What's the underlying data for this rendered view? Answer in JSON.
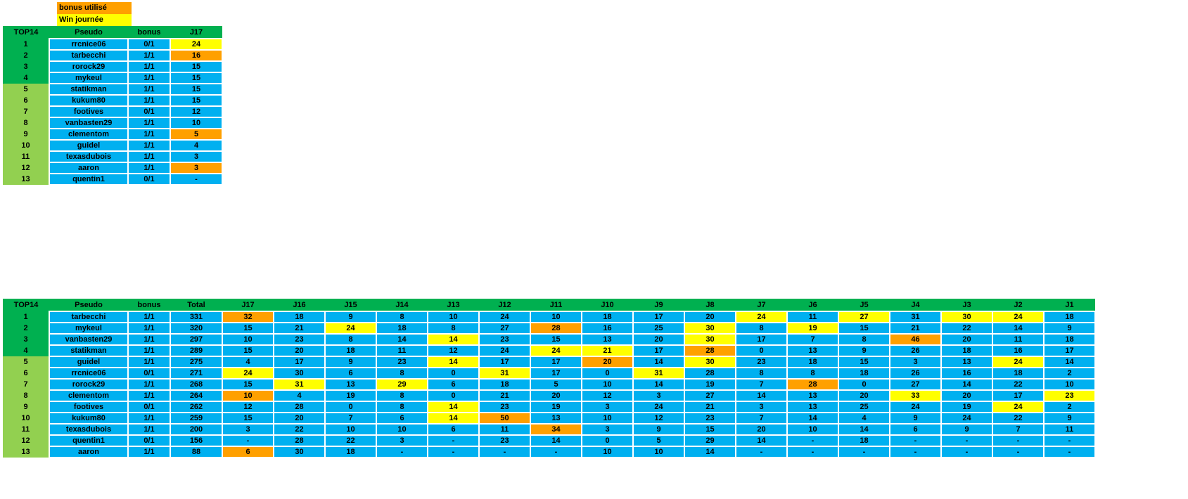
{
  "colors": {
    "green_dark": "#00B050",
    "green_light": "#92D050",
    "blue": "#00B0F0",
    "orange": "#FFA000",
    "yellow": "#FFFF00"
  },
  "legend": {
    "items": [
      {
        "label": "bonus utilisé",
        "meaning": "orange"
      },
      {
        "label": "Win journée",
        "meaning": "yellow"
      }
    ]
  },
  "table1": {
    "headers": [
      "TOP14",
      "Pseudo",
      "bonus",
      "J17"
    ],
    "rows": [
      {
        "rank": 1,
        "pseudo": "rrcnice06",
        "bonus": "0/1",
        "values": [
          24
        ],
        "marks": [
          "w"
        ]
      },
      {
        "rank": 2,
        "pseudo": "tarbecchi",
        "bonus": "1/1",
        "values": [
          16
        ],
        "marks": [
          "b"
        ]
      },
      {
        "rank": 3,
        "pseudo": "rorock29",
        "bonus": "1/1",
        "values": [
          15
        ],
        "marks": [
          ""
        ]
      },
      {
        "rank": 4,
        "pseudo": "mykeul",
        "bonus": "1/1",
        "values": [
          15
        ],
        "marks": [
          ""
        ]
      },
      {
        "rank": 5,
        "pseudo": "statikman",
        "bonus": "1/1",
        "values": [
          15
        ],
        "marks": [
          ""
        ]
      },
      {
        "rank": 6,
        "pseudo": "kukum80",
        "bonus": "1/1",
        "values": [
          15
        ],
        "marks": [
          ""
        ]
      },
      {
        "rank": 7,
        "pseudo": "footives",
        "bonus": "0/1",
        "values": [
          12
        ],
        "marks": [
          ""
        ]
      },
      {
        "rank": 8,
        "pseudo": "vanbasten29",
        "bonus": "1/1",
        "values": [
          10
        ],
        "marks": [
          ""
        ]
      },
      {
        "rank": 9,
        "pseudo": "clementom",
        "bonus": "1/1",
        "values": [
          5
        ],
        "marks": [
          "b"
        ]
      },
      {
        "rank": 10,
        "pseudo": "guidel",
        "bonus": "1/1",
        "values": [
          4
        ],
        "marks": [
          ""
        ]
      },
      {
        "rank": 11,
        "pseudo": "texasdubois",
        "bonus": "1/1",
        "values": [
          3
        ],
        "marks": [
          ""
        ]
      },
      {
        "rank": 12,
        "pseudo": "aaron",
        "bonus": "1/1",
        "values": [
          3
        ],
        "marks": [
          "b"
        ]
      },
      {
        "rank": 13,
        "pseudo": "quentin1",
        "bonus": "0/1",
        "values": [
          "-"
        ],
        "marks": [
          ""
        ]
      }
    ]
  },
  "table2": {
    "headers": [
      "TOP14",
      "Pseudo",
      "bonus",
      "Total",
      "J17",
      "J16",
      "J15",
      "J14",
      "J13",
      "J12",
      "J11",
      "J10",
      "J9",
      "J8",
      "J7",
      "J6",
      "J5",
      "J4",
      "J3",
      "J2",
      "J1"
    ],
    "rows": [
      {
        "rank": 1,
        "pseudo": "tarbecchi",
        "bonus": "1/1",
        "total": 331,
        "values": [
          32,
          18,
          9,
          8,
          10,
          24,
          10,
          18,
          17,
          20,
          24,
          11,
          27,
          31,
          30,
          24,
          18
        ],
        "marks": [
          "b",
          "",
          "",
          "",
          "",
          "",
          "",
          "",
          "",
          "",
          "w",
          "",
          "w",
          "",
          "w",
          "w",
          ""
        ]
      },
      {
        "rank": 2,
        "pseudo": "mykeul",
        "bonus": "1/1",
        "total": 320,
        "values": [
          15,
          21,
          24,
          18,
          8,
          27,
          28,
          16,
          25,
          30,
          8,
          19,
          15,
          21,
          22,
          14,
          9
        ],
        "marks": [
          "",
          "",
          "w",
          "",
          "",
          "",
          "b",
          "",
          "",
          "w",
          "",
          "w",
          "",
          "",
          "",
          "",
          ""
        ]
      },
      {
        "rank": 3,
        "pseudo": "vanbasten29",
        "bonus": "1/1",
        "total": 297,
        "values": [
          10,
          23,
          8,
          14,
          14,
          23,
          15,
          13,
          20,
          30,
          17,
          7,
          8,
          46,
          20,
          11,
          18
        ],
        "marks": [
          "",
          "",
          "",
          "",
          "w",
          "",
          "",
          "",
          "",
          "w",
          "",
          "",
          "",
          "b",
          "",
          "",
          ""
        ]
      },
      {
        "rank": 4,
        "pseudo": "statikman",
        "bonus": "1/1",
        "total": 289,
        "values": [
          15,
          20,
          18,
          11,
          12,
          24,
          24,
          21,
          17,
          28,
          0,
          13,
          9,
          26,
          18,
          16,
          17
        ],
        "marks": [
          "",
          "",
          "",
          "",
          "",
          "",
          "w",
          "w",
          "",
          "b",
          "",
          "",
          "",
          "",
          "",
          "",
          ""
        ]
      },
      {
        "rank": 5,
        "pseudo": "guidel",
        "bonus": "1/1",
        "total": 275,
        "values": [
          4,
          17,
          9,
          23,
          14,
          17,
          17,
          20,
          14,
          30,
          23,
          18,
          15,
          3,
          13,
          24,
          14
        ],
        "marks": [
          "",
          "",
          "",
          "",
          "w",
          "",
          "",
          "b",
          "",
          "w",
          "",
          "",
          "",
          "",
          "",
          "w",
          ""
        ]
      },
      {
        "rank": 6,
        "pseudo": "rrcnice06",
        "bonus": "0/1",
        "total": 271,
        "values": [
          24,
          30,
          6,
          8,
          0,
          31,
          17,
          0,
          31,
          28,
          8,
          8,
          18,
          26,
          16,
          18,
          2
        ],
        "marks": [
          "w",
          "",
          "",
          "",
          "",
          "w",
          "",
          "",
          "w",
          "",
          "",
          "",
          "",
          "",
          "",
          "",
          ""
        ]
      },
      {
        "rank": 7,
        "pseudo": "rorock29",
        "bonus": "1/1",
        "total": 268,
        "values": [
          15,
          31,
          13,
          29,
          6,
          18,
          5,
          10,
          14,
          19,
          7,
          28,
          0,
          27,
          14,
          22,
          10
        ],
        "marks": [
          "",
          "w",
          "",
          "w",
          "",
          "",
          "",
          "",
          "",
          "",
          "",
          "b",
          "",
          "",
          "",
          "",
          ""
        ]
      },
      {
        "rank": 8,
        "pseudo": "clementom",
        "bonus": "1/1",
        "total": 264,
        "values": [
          10,
          4,
          19,
          8,
          0,
          21,
          20,
          12,
          3,
          27,
          14,
          13,
          20,
          33,
          20,
          17,
          23
        ],
        "marks": [
          "b",
          "",
          "",
          "",
          "",
          "",
          "",
          "",
          "",
          "",
          "",
          "",
          "",
          "w",
          "",
          "",
          "w"
        ]
      },
      {
        "rank": 9,
        "pseudo": "footives",
        "bonus": "0/1",
        "total": 262,
        "values": [
          12,
          28,
          0,
          8,
          14,
          23,
          19,
          3,
          24,
          21,
          3,
          13,
          25,
          24,
          19,
          24,
          2
        ],
        "marks": [
          "",
          "",
          "",
          "",
          "w",
          "",
          "",
          "",
          "",
          "",
          "",
          "",
          "",
          "",
          "",
          "w",
          ""
        ]
      },
      {
        "rank": 10,
        "pseudo": "kukum80",
        "bonus": "1/1",
        "total": 259,
        "values": [
          15,
          20,
          7,
          6,
          14,
          50,
          13,
          10,
          12,
          23,
          7,
          14,
          4,
          9,
          24,
          22,
          9
        ],
        "marks": [
          "",
          "",
          "",
          "",
          "w",
          "b",
          "",
          "",
          "",
          "",
          "",
          "",
          "",
          "",
          "",
          "",
          ""
        ]
      },
      {
        "rank": 11,
        "pseudo": "texasdubois",
        "bonus": "1/1",
        "total": 200,
        "values": [
          3,
          22,
          10,
          10,
          6,
          11,
          34,
          3,
          9,
          15,
          20,
          10,
          14,
          6,
          9,
          7,
          11
        ],
        "marks": [
          "",
          "",
          "",
          "",
          "",
          "",
          "b",
          "",
          "",
          "",
          "",
          "",
          "",
          "",
          "",
          "",
          ""
        ]
      },
      {
        "rank": 12,
        "pseudo": "quentin1",
        "bonus": "0/1",
        "total": 156,
        "values": [
          "-",
          28,
          22,
          3,
          "-",
          23,
          14,
          0,
          5,
          29,
          14,
          "-",
          18,
          "-",
          "-",
          "-",
          "-"
        ],
        "marks": [
          "",
          "",
          "",
          "",
          "",
          "",
          "",
          "",
          "",
          "",
          "",
          "",
          "",
          "",
          "",
          "",
          ""
        ]
      },
      {
        "rank": 13,
        "pseudo": "aaron",
        "bonus": "1/1",
        "total": 88,
        "values": [
          6,
          30,
          18,
          "-",
          "-",
          "-",
          "-",
          10,
          10,
          14,
          "-",
          "-",
          "-",
          "-",
          "-",
          "-",
          "-"
        ],
        "marks": [
          "b",
          "",
          "",
          "",
          "",
          "",
          "",
          "",
          "",
          "",
          "",
          "",
          "",
          "",
          "",
          "",
          ""
        ]
      }
    ]
  }
}
